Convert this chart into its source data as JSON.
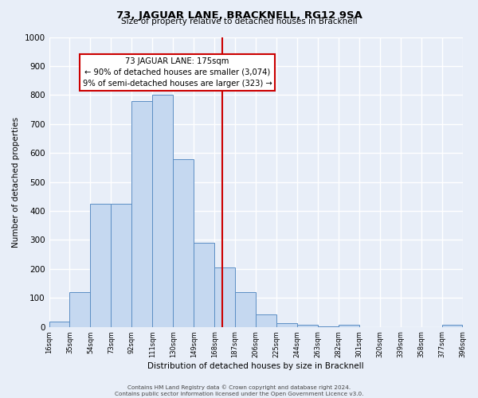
{
  "title": "73, JAGUAR LANE, BRACKNELL, RG12 9SA",
  "subtitle": "Size of property relative to detached houses in Bracknell",
  "xlabel": "Distribution of detached houses by size in Bracknell",
  "ylabel": "Number of detached properties",
  "bin_edges": [
    16,
    35,
    54,
    73,
    92,
    111,
    130,
    149,
    168,
    187,
    206,
    225,
    244,
    263,
    282,
    301,
    320,
    339,
    358,
    377,
    396
  ],
  "bin_labels": [
    "16sqm",
    "35sqm",
    "54sqm",
    "73sqm",
    "92sqm",
    "111sqm",
    "130sqm",
    "149sqm",
    "168sqm",
    "187sqm",
    "206sqm",
    "225sqm",
    "244sqm",
    "263sqm",
    "282sqm",
    "301sqm",
    "320sqm",
    "339sqm",
    "358sqm",
    "377sqm",
    "396sqm"
  ],
  "bar_heights": [
    18,
    120,
    425,
    425,
    780,
    800,
    578,
    290,
    205,
    120,
    42,
    13,
    8,
    2,
    8,
    0,
    0,
    0,
    0,
    8
  ],
  "bar_color": "#c5d8f0",
  "bar_edge_color": "#5b8ec4",
  "vline_x": 175,
  "vline_color": "#cc0000",
  "ylim": [
    0,
    1000
  ],
  "yticks": [
    0,
    100,
    200,
    300,
    400,
    500,
    600,
    700,
    800,
    900,
    1000
  ],
  "annotation_title": "73 JAGUAR LANE: 175sqm",
  "annotation_line1": "← 90% of detached houses are smaller (3,074)",
  "annotation_line2": "9% of semi-detached houses are larger (323) →",
  "annotation_box_color": "#ffffff",
  "annotation_box_edge_color": "#cc0000",
  "footer1": "Contains HM Land Registry data © Crown copyright and database right 2024.",
  "footer2": "Contains public sector information licensed under the Open Government Licence v3.0.",
  "background_color": "#e8eef8",
  "grid_color": "#ffffff"
}
